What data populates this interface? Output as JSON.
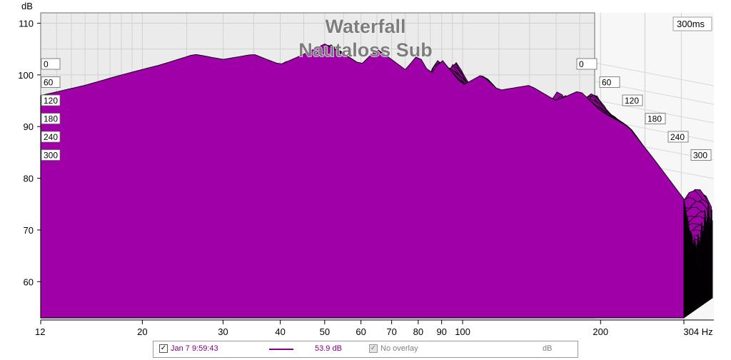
{
  "chart_data": {
    "type": "area",
    "title": "Waterfall",
    "subtitle": "Nautaloss Sub",
    "ylabel": "dB",
    "xlabel": "Hz",
    "x_scale": "log",
    "xlim": [
      12,
      304
    ],
    "ylim": [
      53,
      112
    ],
    "y_ticks": [
      "110",
      "100",
      "90",
      "80",
      "70",
      "60"
    ],
    "y_tick_values": [
      110,
      100,
      90,
      80,
      70,
      60
    ],
    "x_ticks": [
      "12",
      "20",
      "30",
      "40",
      "50",
      "60",
      "70",
      "80",
      "90",
      "100",
      "200",
      "304 Hz"
    ],
    "x_tick_values": [
      12,
      20,
      30,
      40,
      50,
      60,
      70,
      80,
      90,
      100,
      200,
      304
    ],
    "time_axis_label": "300ms",
    "time_ticks": [
      "0",
      "60",
      "120",
      "180",
      "240",
      "300"
    ],
    "time_tick_values_ms": [
      0,
      60,
      120,
      180,
      240,
      300
    ],
    "fill_color": "#a000a8",
    "line_color": "#000000",
    "front_slice": {
      "name": "0 ms",
      "x": [
        12,
        15,
        18,
        22,
        26,
        30,
        35,
        40,
        45,
        50,
        55,
        60,
        65,
        70,
        75,
        80,
        85,
        90,
        100,
        110,
        120,
        140,
        160,
        180,
        200,
        230,
        260,
        304
      ],
      "y": [
        96,
        98,
        100,
        102,
        104,
        103,
        104,
        102,
        104,
        106,
        104,
        102,
        105,
        103,
        101,
        104,
        100,
        103,
        98,
        100,
        97,
        98,
        95,
        97,
        93,
        90,
        84,
        76
      ]
    }
  },
  "legend": {
    "date": "Jan 7 9:59:43",
    "level": "53.9 dB",
    "overlay": "No overlay",
    "unit": "dB"
  }
}
